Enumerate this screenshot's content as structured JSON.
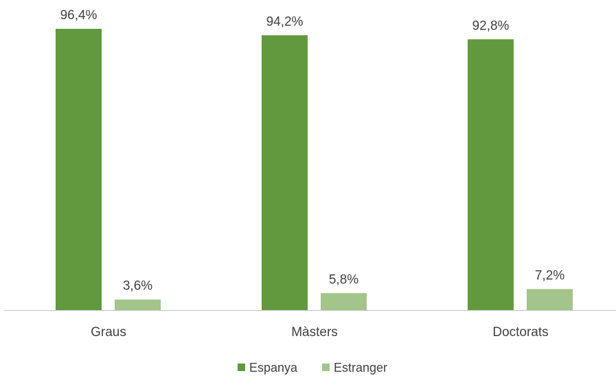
{
  "chart_data": {
    "type": "bar",
    "categories": [
      "Graus",
      "Màsters",
      "Doctorats"
    ],
    "series": [
      {
        "name": "Espanya",
        "color": "#62993e",
        "values": [
          96.4,
          94.2,
          92.8
        ],
        "labels": [
          "96,4%",
          "94,2%",
          "92,8%"
        ]
      },
      {
        "name": "Estranger",
        "color": "#a3c48a",
        "values": [
          3.6,
          5.8,
          7.2
        ],
        "labels": [
          "3,6%",
          "5,8%",
          "7,2%"
        ]
      }
    ],
    "title": "",
    "xlabel": "",
    "ylabel": "",
    "ylim": [
      0,
      96.4
    ],
    "grid": false,
    "legend": "bottom",
    "axis_color": "#bfbfbf"
  }
}
